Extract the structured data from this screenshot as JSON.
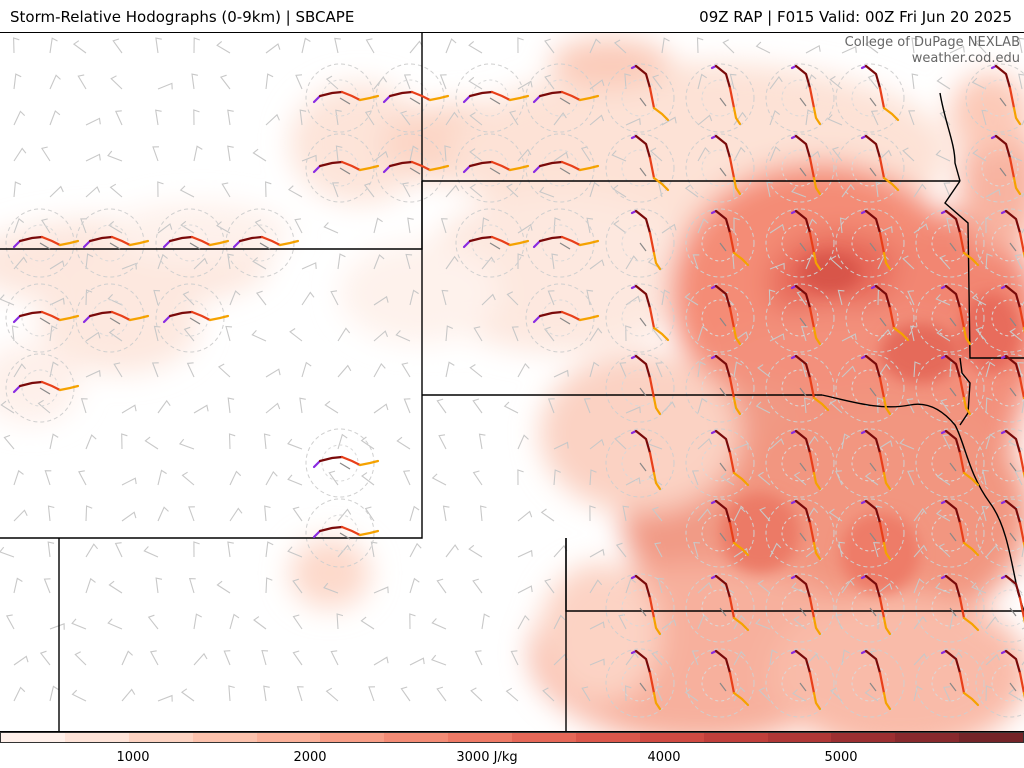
{
  "header": {
    "title_left": "Storm-Relative Hodographs (0-9km) | SBCAPE",
    "title_right": "09Z RAP | F015 Valid: 00Z Fri Jun 20 2025"
  },
  "credit": {
    "line1": "College of DuPage NEXLAB",
    "line2": "weather.cod.edu"
  },
  "colorbar": {
    "colors": [
      "#fff0ea",
      "#fee3d8",
      "#fdd3c2",
      "#fcc2ad",
      "#fbb19a",
      "#f89e87",
      "#f48c76",
      "#ee7a66",
      "#e66858",
      "#dc574b",
      "#d04a42",
      "#c13f3b",
      "#b03736",
      "#9c2f31",
      "#88292d",
      "#742428"
    ],
    "ticks": [
      {
        "label": "1000"
      },
      {
        "label": "2000"
      },
      {
        "label": "3000 J/kg"
      },
      {
        "label": "4000"
      },
      {
        "label": "5000"
      }
    ]
  },
  "map": {
    "palette": {
      "hodo_low": "#8a2be2",
      "hodo_mid_low": "#7a0a0a",
      "hodo_mid_high": "#e8401a",
      "hodo_high": "#f5a200",
      "barb": "#c8c8c8",
      "border": "#000000"
    }
  }
}
